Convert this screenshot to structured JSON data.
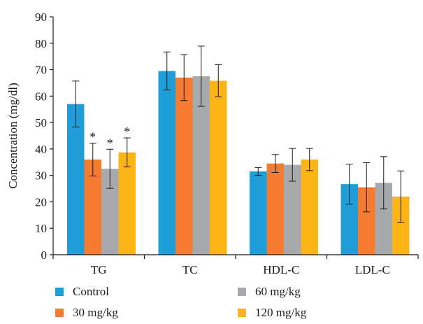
{
  "chart_data": {
    "type": "bar",
    "title": "",
    "xlabel": "",
    "ylabel": "Concentration (mg/dl)",
    "ylim": [
      0,
      90
    ],
    "yticks": [
      0,
      10,
      20,
      30,
      40,
      50,
      60,
      70,
      80,
      90
    ],
    "grid": false,
    "legend_position": "bottom",
    "categories": [
      "TG",
      "TC",
      "HDL-C",
      "LDL-C"
    ],
    "series": [
      {
        "name": "Control",
        "color": "#1f9ed9",
        "values": [
          57,
          69.5,
          31.5,
          26.7
        ],
        "errors": [
          8.7,
          7.2,
          1.5,
          7.6
        ]
      },
      {
        "name": "30 mg/kg",
        "color": "#f47b30",
        "values": [
          36,
          67,
          34.5,
          25.5
        ],
        "errors": [
          6.2,
          8.7,
          3.4,
          9.3
        ]
      },
      {
        "name": "60 mg/kg",
        "color": "#a7a9ac",
        "values": [
          32.5,
          67.5,
          34,
          27.2
        ],
        "errors": [
          7.4,
          11.4,
          6.2,
          9.9
        ]
      },
      {
        "name": "120 mg/kg",
        "color": "#fdb515",
        "values": [
          38.7,
          65.8,
          36,
          22
        ],
        "errors": [
          5.5,
          6.1,
          4.2,
          9.7
        ]
      }
    ],
    "annotations": [
      {
        "category": "TG",
        "series": "30 mg/kg",
        "text": "*"
      },
      {
        "category": "TG",
        "series": "60 mg/kg",
        "text": "*"
      },
      {
        "category": "TG",
        "series": "120 mg/kg",
        "text": "*"
      }
    ]
  }
}
